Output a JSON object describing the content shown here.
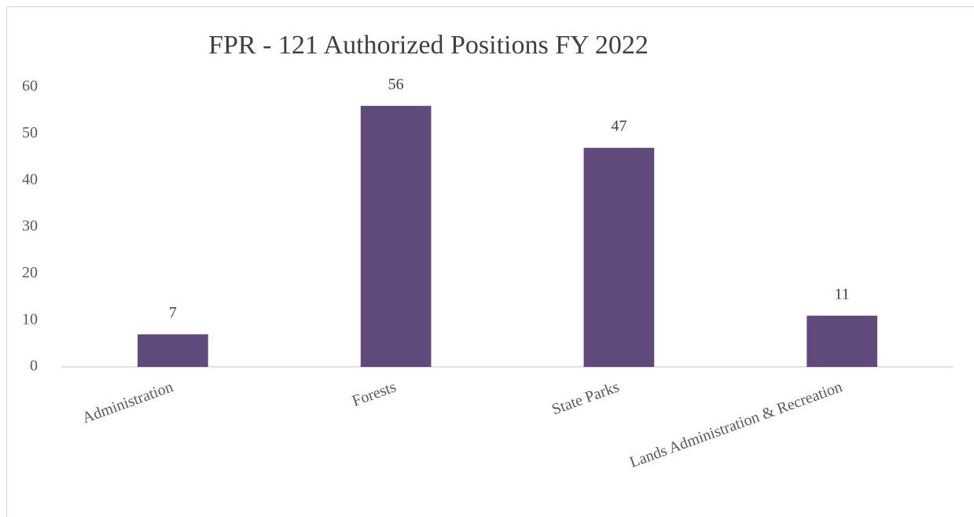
{
  "chart_data": {
    "type": "bar",
    "title": "FPR - 121 Authorized Positions FY 2022",
    "categories": [
      "Administration",
      "Forests",
      "State Parks",
      "Lands Administration & Recreation"
    ],
    "values": [
      7,
      56,
      47,
      11
    ],
    "color": "#5f4a7b",
    "ylim": [
      0,
      60
    ],
    "yticks": [
      0,
      10,
      20,
      30,
      40,
      50,
      60
    ],
    "grid": false
  }
}
